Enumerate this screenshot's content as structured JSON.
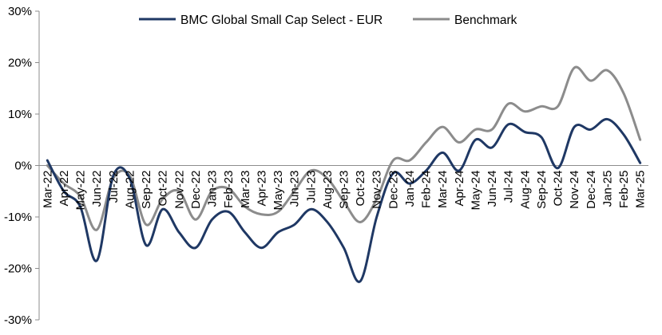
{
  "chart_data": {
    "type": "line",
    "title": "",
    "xlabel": "",
    "ylabel": "",
    "ylim": [
      -30,
      30
    ],
    "y_ticks": [
      -30,
      -20,
      -10,
      0,
      10,
      20,
      30
    ],
    "y_tick_labels": [
      "-30%",
      "-20%",
      "-10%",
      "0%",
      "10%",
      "20%",
      "30%"
    ],
    "grid": false,
    "legend_position": "top-center",
    "categories": [
      "Mar-22",
      "Apr-22",
      "May-22",
      "Jun-22",
      "Jul-22",
      "Aug-22",
      "Sep-22",
      "Oct-22",
      "Nov-22",
      "Dec-22",
      "Jan-23",
      "Feb-23",
      "Mar-23",
      "Apr-23",
      "May-23",
      "Jun-23",
      "Jul-23",
      "Aug-23",
      "Sep-23",
      "Oct-23",
      "Nov-23",
      "Dec-23",
      "Jan-24",
      "Feb-24",
      "Mar-24",
      "Apr-24",
      "May-24",
      "Jun-24",
      "Jul-24",
      "Aug-24",
      "Sep-24",
      "Oct-24",
      "Nov-24",
      "Dec-24",
      "Jan-25",
      "Feb-25",
      "Mar-25"
    ],
    "series": [
      {
        "name": "BMC Global Small Cap Select - EUR",
        "color": "#1f3864",
        "values": [
          1.0,
          -5.0,
          -8.0,
          -18.5,
          -2.0,
          -2.5,
          -15.5,
          -8.5,
          -13.0,
          -16.0,
          -10.5,
          -9.0,
          -13.0,
          -16.0,
          -13.0,
          -11.5,
          -8.5,
          -11.0,
          -16.0,
          -22.5,
          -10.0,
          -1.5,
          -3.5,
          -1.0,
          2.5,
          -1.0,
          5.0,
          3.5,
          8.0,
          6.5,
          5.5,
          -0.5,
          7.5,
          7.0,
          9.0,
          6.0,
          0.5
        ]
      },
      {
        "name": "Benchmark",
        "color": "#8c8c8c",
        "values": [
          0.0,
          -3.5,
          -6.0,
          -12.5,
          -2.5,
          -2.0,
          -11.5,
          -6.5,
          -5.0,
          -10.5,
          -5.0,
          -4.5,
          -8.0,
          -9.5,
          -9.0,
          -5.0,
          -1.0,
          -2.5,
          -7.0,
          -11.0,
          -6.5,
          1.0,
          1.0,
          4.5,
          7.5,
          4.5,
          7.0,
          7.0,
          12.0,
          10.5,
          11.5,
          11.5,
          19.0,
          16.5,
          18.5,
          14.0,
          5.0
        ]
      }
    ]
  }
}
